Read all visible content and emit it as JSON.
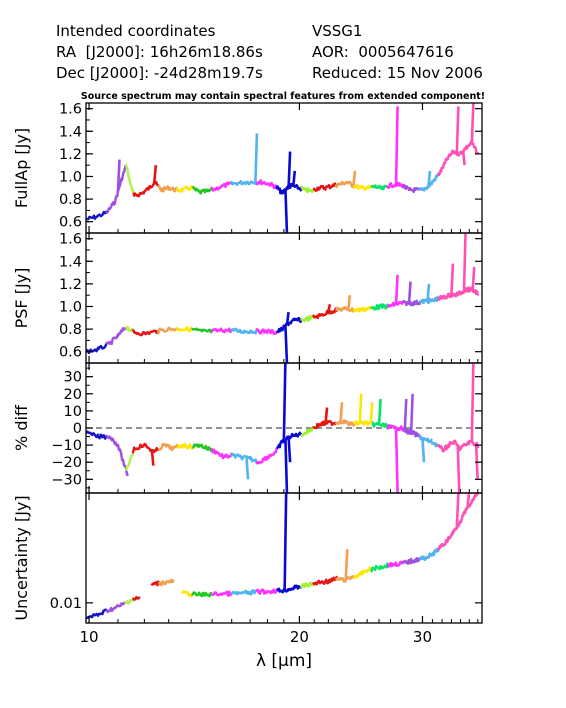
{
  "header": {
    "left_line1": "Intended coordinates",
    "left_line2": "RA  [J2000]: 16h26m18.86s",
    "left_line3": "Dec [J2000]: -24d28m19.7s",
    "right_line1": "VSSG1",
    "right_line2": "AOR:  0005647616",
    "right_line3": "Reduced: 15 Nov 2006",
    "note": "Source spectrum may contain spectral features from extended component!"
  },
  "chart_data": {
    "type": "line",
    "xlabel": "λ [μm]",
    "x_scale": "log",
    "xlim": [
      9.9,
      36.5
    ],
    "x_ticks": [
      10,
      20,
      30
    ],
    "x_tick_labels": [
      "10",
      "20",
      "30"
    ],
    "segment_colors": [
      "#1414c8",
      "#a050e0",
      "#b4f050",
      "#e61414",
      "#f0a050",
      "#ffe600",
      "#1ec81e",
      "#ff32ff",
      "#50b4f0",
      "#0a0ad2",
      "#a0f032",
      "#00e664",
      "#ff50b4"
    ],
    "segments": [
      {
        "x0": 9.9,
        "x1": 10.6,
        "color": 0
      },
      {
        "x0": 10.6,
        "x1": 11.3,
        "color": 1
      },
      {
        "x0": 11.3,
        "x1": 11.6,
        "color": 2
      },
      {
        "x0": 11.6,
        "x1": 12.6,
        "color": 3
      },
      {
        "x0": 12.6,
        "x1": 13.4,
        "color": 4
      },
      {
        "x0": 13.4,
        "x1": 14.1,
        "color": 5
      },
      {
        "x0": 14.1,
        "x1": 15.0,
        "color": 6
      },
      {
        "x0": 15.0,
        "x1": 16.0,
        "color": 7
      },
      {
        "x0": 16.0,
        "x1": 17.4,
        "color": 8
      },
      {
        "x0": 17.4,
        "x1": 18.6,
        "color": 7
      },
      {
        "x0": 18.6,
        "x1": 20.2,
        "color": 9
      },
      {
        "x0": 20.2,
        "x1": 21.0,
        "color": 10
      },
      {
        "x0": 21.0,
        "x1": 22.6,
        "color": 3
      },
      {
        "x0": 22.6,
        "x1": 24.0,
        "color": 4
      },
      {
        "x0": 24.0,
        "x1": 25.4,
        "color": 5
      },
      {
        "x0": 25.4,
        "x1": 26.8,
        "color": 11
      },
      {
        "x0": 26.8,
        "x1": 28.2,
        "color": 7
      },
      {
        "x0": 28.2,
        "x1": 29.8,
        "color": 1
      },
      {
        "x0": 29.8,
        "x1": 31.6,
        "color": 8
      },
      {
        "x0": 31.6,
        "x1": 36.0,
        "color": 12
      }
    ],
    "panels": [
      {
        "name": "fullap",
        "ylabel": "FullAp [Jy]",
        "ylim": [
          0.5,
          1.65
        ],
        "y_ticks": [
          0.6,
          0.8,
          1.0,
          1.2,
          1.4,
          1.6
        ],
        "y_tick_labels": [
          "0.6",
          "0.8",
          "1.0",
          "1.2",
          "1.4",
          "1.6"
        ],
        "ref_line": null,
        "points": [
          [
            9.9,
            0.62
          ],
          [
            10.2,
            0.64
          ],
          [
            10.6,
            0.68
          ],
          [
            10.9,
            0.78
          ],
          [
            11.1,
            0.95
          ],
          [
            11.3,
            1.1
          ],
          [
            11.45,
            0.95
          ],
          [
            11.6,
            0.83
          ],
          [
            11.9,
            0.85
          ],
          [
            12.2,
            0.9
          ],
          [
            12.4,
            0.95
          ],
          [
            12.7,
            0.88
          ],
          [
            13.0,
            0.9
          ],
          [
            13.3,
            0.88
          ],
          [
            13.6,
            0.88
          ],
          [
            14.0,
            0.9
          ],
          [
            14.4,
            0.86
          ],
          [
            14.8,
            0.87
          ],
          [
            15.3,
            0.9
          ],
          [
            15.8,
            0.93
          ],
          [
            16.3,
            0.94
          ],
          [
            16.8,
            0.95
          ],
          [
            17.3,
            0.95
          ],
          [
            17.7,
            0.95
          ],
          [
            18.2,
            0.93
          ],
          [
            18.6,
            0.9
          ],
          [
            18.9,
            0.85
          ],
          [
            19.2,
            0.9
          ],
          [
            19.5,
            0.92
          ],
          [
            19.9,
            0.9
          ],
          [
            20.4,
            0.88
          ],
          [
            20.8,
            0.87
          ],
          [
            21.3,
            0.9
          ],
          [
            21.8,
            0.9
          ],
          [
            22.3,
            0.92
          ],
          [
            22.8,
            0.93
          ],
          [
            23.4,
            0.95
          ],
          [
            23.9,
            0.92
          ],
          [
            24.5,
            0.9
          ],
          [
            25.1,
            0.9
          ],
          [
            25.7,
            0.91
          ],
          [
            26.3,
            0.89
          ],
          [
            26.9,
            0.92
          ],
          [
            27.5,
            0.93
          ],
          [
            28.1,
            0.92
          ],
          [
            28.7,
            0.88
          ],
          [
            29.3,
            0.88
          ],
          [
            30.0,
            0.88
          ],
          [
            30.7,
            0.92
          ],
          [
            31.3,
            0.98
          ],
          [
            31.9,
            1.05
          ],
          [
            32.5,
            1.15
          ],
          [
            33.2,
            1.22
          ],
          [
            33.9,
            1.2
          ],
          [
            34.6,
            1.25
          ],
          [
            35.3,
            1.3
          ],
          [
            36.0,
            1.2
          ]
        ],
        "spikes": [
          [
            11.0,
            1.15
          ],
          [
            12.4,
            1.1
          ],
          [
            17.3,
            1.38
          ],
          [
            19.1,
            0.5
          ],
          [
            19.3,
            1.22
          ],
          [
            19.6,
            1.05
          ],
          [
            23.9,
            1.05
          ],
          [
            27.5,
            1.62
          ],
          [
            30.6,
            1.05
          ],
          [
            33.6,
            1.62
          ],
          [
            35.3,
            1.65
          ],
          [
            34.3,
            1.1
          ]
        ]
      },
      {
        "name": "psf",
        "ylabel": "PSF [Jy]",
        "ylim": [
          0.5,
          1.65
        ],
        "y_ticks": [
          0.6,
          0.8,
          1.0,
          1.2,
          1.4,
          1.6
        ],
        "y_tick_labels": [
          "0.6",
          "0.8",
          "1.0",
          "1.2",
          "1.4",
          "1.6"
        ],
        "ref_line": null,
        "points": [
          [
            9.9,
            0.6
          ],
          [
            10.3,
            0.62
          ],
          [
            10.7,
            0.67
          ],
          [
            11.0,
            0.74
          ],
          [
            11.3,
            0.82
          ],
          [
            11.6,
            0.77
          ],
          [
            12.0,
            0.76
          ],
          [
            12.5,
            0.78
          ],
          [
            13.0,
            0.8
          ],
          [
            13.5,
            0.8
          ],
          [
            14.0,
            0.8
          ],
          [
            14.5,
            0.78
          ],
          [
            15.0,
            0.78
          ],
          [
            15.5,
            0.79
          ],
          [
            16.0,
            0.79
          ],
          [
            16.5,
            0.78
          ],
          [
            17.0,
            0.78
          ],
          [
            17.5,
            0.78
          ],
          [
            18.0,
            0.78
          ],
          [
            18.5,
            0.77
          ],
          [
            18.9,
            0.8
          ],
          [
            19.3,
            0.85
          ],
          [
            19.7,
            0.88
          ],
          [
            20.2,
            0.88
          ],
          [
            20.8,
            0.9
          ],
          [
            21.4,
            0.92
          ],
          [
            22.0,
            0.95
          ],
          [
            22.6,
            0.97
          ],
          [
            23.2,
            0.98
          ],
          [
            23.8,
            0.97
          ],
          [
            24.4,
            0.97
          ],
          [
            25.0,
            0.98
          ],
          [
            25.6,
            0.99
          ],
          [
            26.2,
            1.0
          ],
          [
            26.8,
            1.0
          ],
          [
            27.4,
            1.02
          ],
          [
            28.0,
            1.03
          ],
          [
            28.6,
            1.03
          ],
          [
            29.2,
            1.03
          ],
          [
            29.8,
            1.04
          ],
          [
            30.4,
            1.05
          ],
          [
            31.0,
            1.05
          ],
          [
            31.6,
            1.07
          ],
          [
            32.2,
            1.08
          ],
          [
            32.8,
            1.1
          ],
          [
            33.4,
            1.1
          ],
          [
            34.0,
            1.12
          ],
          [
            34.6,
            1.15
          ],
          [
            35.2,
            1.15
          ],
          [
            36.0,
            1.12
          ]
        ],
        "spikes": [
          [
            19.1,
            0.5
          ],
          [
            19.2,
            0.95
          ],
          [
            22.0,
            1.02
          ],
          [
            23.5,
            1.1
          ],
          [
            27.5,
            1.28
          ],
          [
            28.7,
            1.22
          ],
          [
            30.5,
            1.2
          ],
          [
            33.0,
            1.38
          ],
          [
            34.4,
            1.65
          ],
          [
            35.4,
            1.35
          ]
        ]
      },
      {
        "name": "pctdiff",
        "ylabel": "% diff",
        "ylim": [
          -38,
          38
        ],
        "y_ticks": [
          -30,
          -20,
          -10,
          0,
          10,
          20,
          30
        ],
        "y_tick_labels": [
          "−30",
          "−20",
          "−10",
          "0",
          "10",
          "20",
          "30"
        ],
        "ref_line": 0,
        "points": [
          [
            9.9,
            -3
          ],
          [
            10.3,
            -5
          ],
          [
            10.7,
            -5
          ],
          [
            11.0,
            -10
          ],
          [
            11.3,
            -25
          ],
          [
            11.6,
            -12
          ],
          [
            12.0,
            -10
          ],
          [
            12.4,
            -14
          ],
          [
            12.8,
            -10
          ],
          [
            13.2,
            -12
          ],
          [
            13.6,
            -10
          ],
          [
            14.0,
            -11
          ],
          [
            14.4,
            -10
          ],
          [
            14.8,
            -12
          ],
          [
            15.2,
            -14
          ],
          [
            15.6,
            -17
          ],
          [
            16.0,
            -16
          ],
          [
            16.5,
            -17
          ],
          [
            17.0,
            -18
          ],
          [
            17.5,
            -20
          ],
          [
            18.0,
            -17
          ],
          [
            18.5,
            -14
          ],
          [
            18.9,
            -8
          ],
          [
            19.4,
            -5
          ],
          [
            19.9,
            -4
          ],
          [
            20.4,
            -3
          ],
          [
            20.9,
            0
          ],
          [
            21.4,
            2
          ],
          [
            21.9,
            3
          ],
          [
            22.5,
            3
          ],
          [
            23.1,
            4
          ],
          [
            23.7,
            2
          ],
          [
            24.3,
            3
          ],
          [
            24.9,
            3
          ],
          [
            25.5,
            2
          ],
          [
            26.1,
            2
          ],
          [
            26.7,
            1
          ],
          [
            27.3,
            0
          ],
          [
            27.9,
            0
          ],
          [
            28.5,
            -2
          ],
          [
            29.1,
            -3
          ],
          [
            29.7,
            -5
          ],
          [
            30.3,
            -7
          ],
          [
            30.9,
            -8
          ],
          [
            31.5,
            -10
          ],
          [
            32.1,
            -13
          ],
          [
            32.7,
            -10
          ],
          [
            33.3,
            -8
          ],
          [
            33.9,
            -12
          ],
          [
            34.5,
            -10
          ],
          [
            35.2,
            -8
          ],
          [
            36.0,
            -10
          ]
        ],
        "spikes": [
          [
            11.3,
            -28
          ],
          [
            12.3,
            -22
          ],
          [
            16.8,
            -30
          ],
          [
            19.0,
            38
          ],
          [
            19.1,
            -38
          ],
          [
            19.3,
            -20
          ],
          [
            21.8,
            12
          ],
          [
            22.9,
            15
          ],
          [
            24.4,
            20
          ],
          [
            25.3,
            15
          ],
          [
            26.0,
            17
          ],
          [
            27.5,
            -38
          ],
          [
            28.3,
            17
          ],
          [
            28.9,
            20
          ],
          [
            30.0,
            -20
          ],
          [
            33.7,
            -38
          ],
          [
            35.3,
            38
          ],
          [
            35.8,
            -30
          ]
        ]
      },
      {
        "name": "uncertainty",
        "ylabel": "Uncertainty [Jy]",
        "ylim": [
          0.0072,
          0.06
        ],
        "y_scale": "log",
        "y_ticks": [
          0.01
        ],
        "y_tick_labels": [
          "0.01"
        ],
        "ref_line": null,
        "points": [
          [
            9.9,
            0.0078
          ],
          [
            10.3,
            0.0082
          ],
          [
            10.6,
            0.0088
          ],
          [
            10.9,
            0.0092
          ],
          [
            11.2,
            0.0098
          ],
          [
            11.5,
            0.0105
          ],
          [
            11.8,
            0.0108
          ],
          [
            12.1,
            null
          ],
          [
            12.3,
            0.0135
          ],
          [
            12.6,
            0.0138
          ],
          [
            12.9,
            0.014
          ],
          [
            13.2,
            0.0142
          ],
          [
            13.4,
            null
          ],
          [
            13.6,
            0.0118
          ],
          [
            14.0,
            0.0115
          ],
          [
            14.5,
            0.0114
          ],
          [
            15.0,
            0.0115
          ],
          [
            15.5,
            0.0116
          ],
          [
            16.0,
            0.0116
          ],
          [
            16.5,
            0.0117
          ],
          [
            17.0,
            0.0118
          ],
          [
            17.5,
            0.012
          ],
          [
            18.0,
            0.012
          ],
          [
            18.5,
            0.0122
          ],
          [
            18.9,
            0.0122
          ],
          [
            19.3,
            0.0125
          ],
          [
            19.7,
            0.0128
          ],
          [
            20.2,
            0.0132
          ],
          [
            20.8,
            0.0135
          ],
          [
            21.4,
            0.014
          ],
          [
            22.0,
            0.0142
          ],
          [
            22.6,
            0.0148
          ],
          [
            23.2,
            0.0145
          ],
          [
            23.8,
            0.0152
          ],
          [
            24.4,
            0.0158
          ],
          [
            25.0,
            0.017
          ],
          [
            25.6,
            0.0175
          ],
          [
            26.2,
            0.018
          ],
          [
            26.8,
            0.0185
          ],
          [
            27.4,
            0.0188
          ],
          [
            28.0,
            0.019
          ],
          [
            28.6,
            0.0195
          ],
          [
            29.2,
            0.02
          ],
          [
            29.8,
            0.0205
          ],
          [
            30.4,
            0.021
          ],
          [
            31.0,
            0.022
          ],
          [
            31.6,
            0.024
          ],
          [
            32.2,
            0.026
          ],
          [
            32.8,
            0.029
          ],
          [
            33.4,
            0.033
          ],
          [
            34.0,
            0.038
          ],
          [
            34.6,
            0.045
          ],
          [
            35.3,
            0.052
          ],
          [
            36.0,
            0.06
          ]
        ],
        "spikes": [
          [
            19.05,
            0.06
          ],
          [
            19.2,
            0.012
          ],
          [
            23.3,
            0.024
          ],
          [
            33.6,
            0.06
          ],
          [
            34.8,
            0.06
          ]
        ]
      }
    ]
  }
}
